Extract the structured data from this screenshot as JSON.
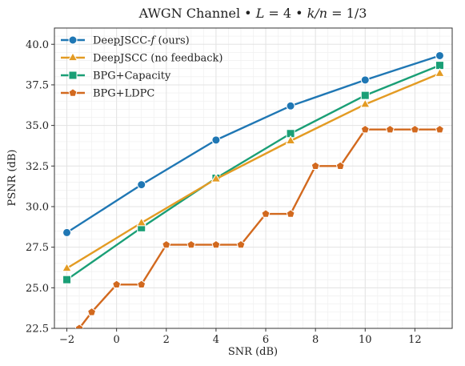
{
  "chart_data": {
    "type": "line",
    "title": "AWGN Channel • L = 4 • k/n = 1/3",
    "xlabel": "SNR (dB)",
    "ylabel": "PSNR (dB)",
    "xlim": [
      -2.5,
      13.5
    ],
    "ylim": [
      22.5,
      41.0
    ],
    "xticks": [
      -2,
      0,
      2,
      4,
      6,
      8,
      10,
      12
    ],
    "xtick_labels": [
      "−2",
      "0",
      "2",
      "4",
      "6",
      "8",
      "10",
      "12"
    ],
    "yticks": [
      22.5,
      25.0,
      27.5,
      30.0,
      32.5,
      35.0,
      37.5,
      40.0
    ],
    "ytick_labels": [
      "22.5",
      "25.0",
      "27.5",
      "30.0",
      "32.5",
      "35.0",
      "37.5",
      "40.0"
    ],
    "grid": true,
    "legend_position": "top-left",
    "series": [
      {
        "name": "DeepJSCC-f (ours)",
        "color": "#1f77b4",
        "marker": "circle",
        "x": [
          -2,
          1,
          4,
          7,
          10,
          13
        ],
        "y": [
          28.4,
          31.35,
          34.1,
          36.2,
          37.8,
          39.3
        ]
      },
      {
        "name": "DeepJSCC (no feedback)",
        "color": "#e39b23",
        "marker": "triangle",
        "x": [
          -2,
          1,
          4,
          7,
          10,
          13
        ],
        "y": [
          26.2,
          29.0,
          31.7,
          34.05,
          36.3,
          38.2
        ]
      },
      {
        "name": "BPG+Capacity",
        "color": "#1a9f76",
        "marker": "square",
        "x": [
          -2,
          1,
          4,
          7,
          10,
          13
        ],
        "y": [
          25.5,
          28.7,
          31.75,
          34.5,
          36.85,
          38.7
        ]
      },
      {
        "name": "BPG+LDPC",
        "color": "#d2691e",
        "marker": "pentagon",
        "x": [
          -1.5,
          -1,
          0,
          1,
          2,
          3,
          4,
          5,
          6,
          7,
          8,
          9,
          10,
          11,
          12,
          13
        ],
        "y": [
          22.5,
          23.5,
          25.2,
          25.2,
          27.65,
          27.65,
          27.65,
          27.65,
          29.55,
          29.55,
          32.5,
          32.5,
          34.75,
          34.75,
          34.75,
          34.75
        ]
      }
    ]
  }
}
